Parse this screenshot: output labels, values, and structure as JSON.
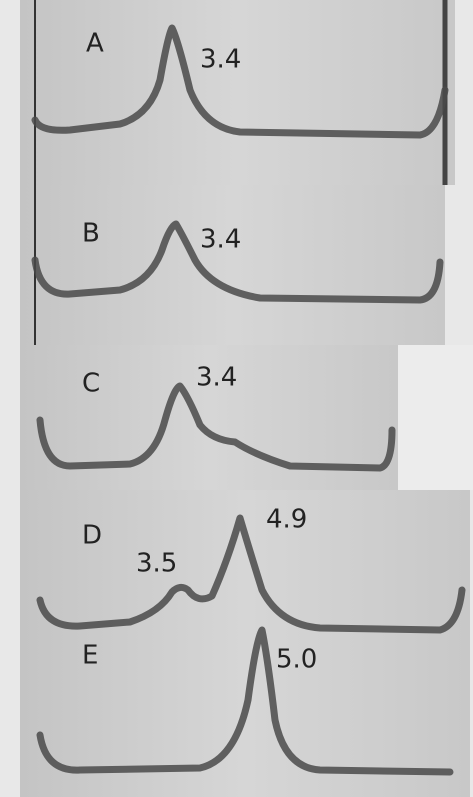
{
  "panels": [
    {
      "label": "A",
      "peaks": [
        "3.4"
      ]
    },
    {
      "label": "B",
      "peaks": [
        "3.4"
      ]
    },
    {
      "label": "C",
      "peaks": [
        "3.4"
      ]
    },
    {
      "label": "D",
      "peaks": [
        "3.5",
        "4.9"
      ]
    },
    {
      "label": "E",
      "peaks": [
        "5.0"
      ]
    }
  ]
}
